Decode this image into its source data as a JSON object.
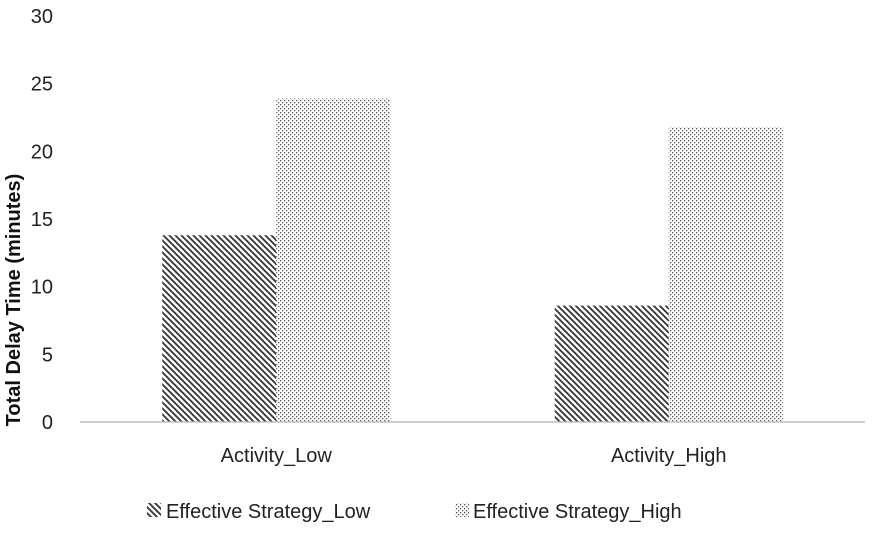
{
  "chart_data": {
    "type": "bar",
    "title": "",
    "xlabel": "",
    "ylabel": "Total Delay Time (minutes)",
    "categories": [
      "Activity_Low",
      "Activity_High"
    ],
    "series": [
      {
        "name": "Effective Strategy_Low",
        "values": [
          13.8,
          8.6
        ],
        "pattern": "diagonal-hatch"
      },
      {
        "name": "Effective Strategy_High",
        "values": [
          23.9,
          21.8
        ],
        "pattern": "dots"
      }
    ],
    "ylim": [
      0,
      30
    ],
    "yticks": [
      0,
      5,
      10,
      15,
      20,
      25,
      30
    ],
    "grid": false,
    "legend_position": "bottom",
    "colors": {
      "hatch": "#333333",
      "dots": "#555555",
      "axis": "#bfbfbf",
      "text": "#222222"
    }
  }
}
